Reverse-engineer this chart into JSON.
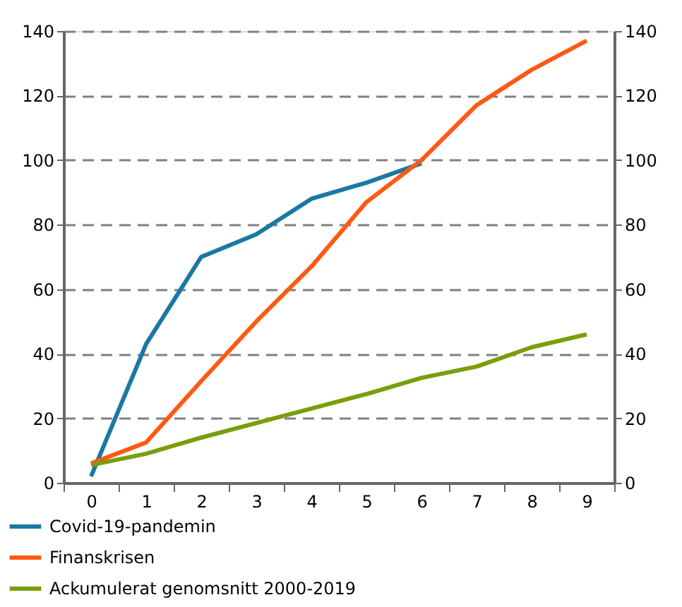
{
  "chart_data": {
    "type": "line",
    "categories": [
      "0",
      "1",
      "2",
      "3",
      "4",
      "5",
      "6",
      "7",
      "8",
      "9"
    ],
    "series": [
      {
        "name": "Covid-19-pandemin",
        "color": "#1a78a4",
        "values": [
          2,
          43,
          70,
          77,
          88,
          93,
          99,
          null,
          null,
          null
        ]
      },
      {
        "name": "Finanskrisen",
        "color": "#ff5a14",
        "values": [
          6,
          12.5,
          31.5,
          50,
          67,
          87,
          100,
          117,
          128,
          137
        ]
      },
      {
        "name": "Ackumulerat genomsnitt 2000-2019",
        "color": "#7a9e0a",
        "values": [
          5.5,
          9,
          14,
          18.5,
          23,
          27.5,
          32.5,
          36,
          42,
          46
        ]
      }
    ],
    "ylim": [
      0,
      140
    ],
    "yticks": [
      0,
      20,
      40,
      60,
      80,
      100,
      120,
      140
    ],
    "y2lim": [
      0,
      140
    ],
    "y2ticks": [
      0,
      20,
      40,
      60,
      80,
      100,
      120,
      140
    ],
    "grid": "y",
    "legend": "bottom",
    "line_style": "solid",
    "marker": "none"
  }
}
